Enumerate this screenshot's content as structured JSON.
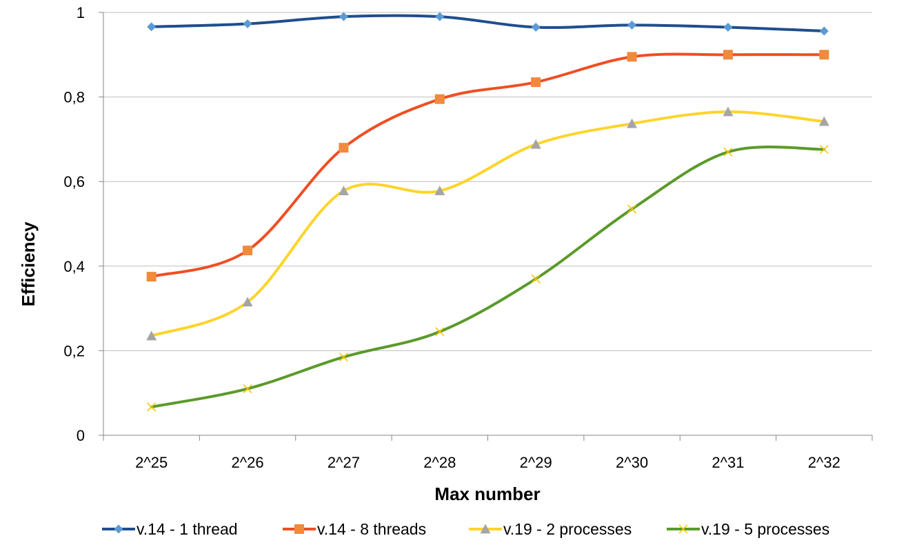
{
  "chart_data": {
    "type": "line",
    "title": "",
    "xlabel": "Max number",
    "ylabel": "Efficiency",
    "categories": [
      "2^25",
      "2^26",
      "2^27",
      "2^28",
      "2^29",
      "2^30",
      "2^31",
      "2^32"
    ],
    "ylim": [
      0,
      1
    ],
    "yticks": [
      "0",
      "0,2",
      "0,4",
      "0,6",
      "0,8",
      "1"
    ],
    "grid": true,
    "legend_position": "bottom",
    "series": [
      {
        "name": "v.14 - 1 thread",
        "color": "#1F4E8C",
        "marker": "diamond",
        "marker_color": "#5B9BD5",
        "values": [
          0.966,
          0.973,
          0.99,
          0.99,
          0.965,
          0.97,
          0.965,
          0.956
        ]
      },
      {
        "name": "v.14 - 8 threads",
        "color": "#F04E23",
        "marker": "square",
        "marker_color": "#F08A3C",
        "values": [
          0.375,
          0.437,
          0.68,
          0.795,
          0.835,
          0.895,
          0.9,
          0.9
        ]
      },
      {
        "name": "v.19 - 2 processes",
        "color": "#FFD42A",
        "marker": "triangle",
        "marker_color": "#A5A5A5",
        "values": [
          0.235,
          0.315,
          0.578,
          0.578,
          0.688,
          0.737,
          0.765,
          0.742
        ]
      },
      {
        "name": "v.19 - 5 processes",
        "color": "#5A9A2A",
        "marker": "x",
        "marker_color": "#F5C400",
        "values": [
          0.067,
          0.11,
          0.185,
          0.245,
          0.37,
          0.535,
          0.67,
          0.676
        ]
      }
    ]
  }
}
